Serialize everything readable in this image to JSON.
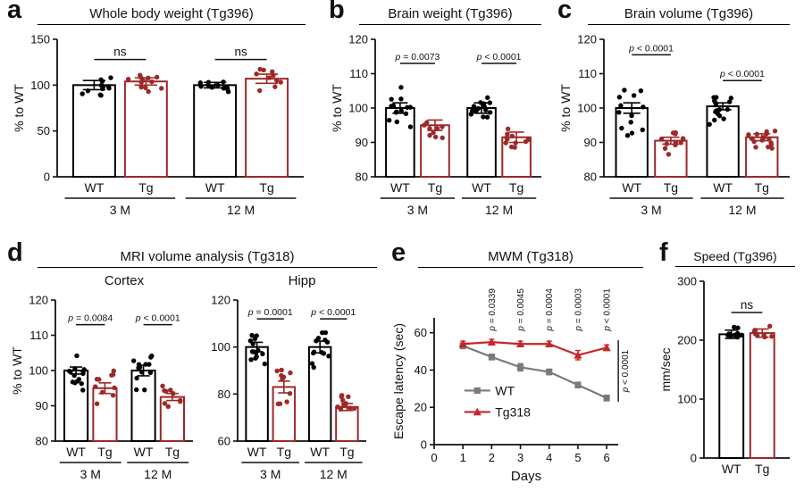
{
  "colors": {
    "wt": "#000000",
    "tg": "#9e2828",
    "axis": "#111111"
  },
  "panels": {
    "a": {
      "letter": "a",
      "title": "Whole body weight (Tg396)"
    },
    "b": {
      "letter": "b",
      "title": "Brain weight (Tg396)"
    },
    "c": {
      "letter": "c",
      "title": "Brain volume (Tg396)"
    },
    "d": {
      "letter": "d",
      "title": "MRI volume analysis (Tg318)",
      "subtitles": [
        "Cortex",
        "Hipp"
      ]
    },
    "e": {
      "letter": "e",
      "title": "MWM (Tg318)"
    },
    "f": {
      "letter": "f",
      "title": "Speed (Tg396)"
    }
  },
  "chart_data": [
    {
      "id": "a",
      "type": "bar",
      "title": "Whole body weight (Tg396)",
      "ylabel": "% to WT",
      "ylim": [
        0,
        150
      ],
      "yticks": [
        0,
        50,
        100,
        150
      ],
      "group_labels": [
        "3 M",
        "12 M"
      ],
      "bars": [
        {
          "x_label": "WT",
          "group": 0,
          "series": "WT",
          "mean": 100,
          "sem": 5,
          "n": 12,
          "spread": 26
        },
        {
          "x_label": "Tg",
          "group": 0,
          "series": "Tg",
          "mean": 104,
          "sem": 4,
          "n": 12,
          "spread": 22
        },
        {
          "x_label": "WT",
          "group": 1,
          "series": "WT",
          "mean": 100,
          "sem": 3,
          "n": 13,
          "spread": 16
        },
        {
          "x_label": "Tg",
          "group": 1,
          "series": "Tg",
          "mean": 107,
          "sem": 5,
          "n": 10,
          "spread": 24
        }
      ],
      "comparisons": [
        {
          "bars": [
            0,
            1
          ],
          "label": "ns",
          "y": 128
        },
        {
          "bars": [
            2,
            3
          ],
          "label": "ns",
          "y": 128
        }
      ]
    },
    {
      "id": "b",
      "type": "bar",
      "title": "Brain weight (Tg396)",
      "ylabel": "% to WT",
      "ylim": [
        80,
        120
      ],
      "yticks": [
        80,
        90,
        100,
        110,
        120
      ],
      "group_labels": [
        "3 M",
        "12 M"
      ],
      "bars": [
        {
          "x_label": "WT",
          "group": 0,
          "series": "WT",
          "mean": 100,
          "sem": 1.5,
          "n": 14,
          "spread": 14
        },
        {
          "x_label": "Tg",
          "group": 0,
          "series": "Tg",
          "mean": 95,
          "sem": 1.5,
          "n": 9,
          "spread": 9
        },
        {
          "x_label": "WT",
          "group": 1,
          "series": "WT",
          "mean": 100,
          "sem": 1.5,
          "n": 15,
          "spread": 13
        },
        {
          "x_label": "Tg",
          "group": 1,
          "series": "Tg",
          "mean": 91.5,
          "sem": 1.5,
          "n": 11,
          "spread": 10
        }
      ],
      "comparisons": [
        {
          "bars": [
            0,
            1
          ],
          "label": "p = 0.0073",
          "y": 113
        },
        {
          "bars": [
            2,
            3
          ],
          "label": "p < 0.0001",
          "y": 113
        }
      ]
    },
    {
      "id": "c",
      "type": "bar",
      "title": "Brain volume (Tg396)",
      "ylabel": "% to WT",
      "ylim": [
        80,
        120
      ],
      "yticks": [
        80,
        90,
        100,
        110,
        120
      ],
      "group_labels": [
        "3 M",
        "12 M"
      ],
      "bars": [
        {
          "x_label": "WT",
          "group": 0,
          "series": "WT",
          "mean": 100,
          "sem": 1.5,
          "n": 13,
          "spread": 18
        },
        {
          "x_label": "Tg",
          "group": 0,
          "series": "Tg",
          "mean": 90.5,
          "sem": 1,
          "n": 12,
          "spread": 8
        },
        {
          "x_label": "WT",
          "group": 1,
          "series": "WT",
          "mean": 100.5,
          "sem": 1,
          "n": 16,
          "spread": 11
        },
        {
          "x_label": "Tg",
          "group": 1,
          "series": "Tg",
          "mean": 91.5,
          "sem": 1,
          "n": 16,
          "spread": 8
        }
      ],
      "comparisons": [
        {
          "bars": [
            0,
            1
          ],
          "label": "p < 0.0001",
          "y": 115.5
        },
        {
          "bars": [
            2,
            3
          ],
          "label": "p < 0.0001",
          "y": 108
        }
      ]
    },
    {
      "id": "d1",
      "type": "bar",
      "subtitle": "Cortex",
      "ylabel": "% to WT",
      "ylim": [
        80,
        120
      ],
      "yticks": [
        80,
        90,
        100,
        110,
        120
      ],
      "group_labels": [
        "3 M",
        "12 M"
      ],
      "bars": [
        {
          "x_label": "WT",
          "group": 0,
          "series": "WT",
          "mean": 100,
          "sem": 1,
          "n": 14,
          "spread": 11
        },
        {
          "x_label": "Tg",
          "group": 0,
          "series": "Tg",
          "mean": 95,
          "sem": 1.5,
          "n": 10,
          "spread": 12
        },
        {
          "x_label": "WT",
          "group": 1,
          "series": "WT",
          "mean": 100,
          "sem": 1.5,
          "n": 13,
          "spread": 16
        },
        {
          "x_label": "Tg",
          "group": 1,
          "series": "Tg",
          "mean": 92.5,
          "sem": 1,
          "n": 10,
          "spread": 8
        }
      ],
      "comparisons": [
        {
          "bars": [
            0,
            1
          ],
          "label": "p = 0.0084",
          "y": 113
        },
        {
          "bars": [
            2,
            3
          ],
          "label": "p < 0.0001",
          "y": 113
        }
      ]
    },
    {
      "id": "d2",
      "type": "bar",
      "subtitle": "Hipp",
      "ylim": [
        60,
        120
      ],
      "yticks": [
        60,
        80,
        100,
        120
      ],
      "group_labels": [
        "3 M",
        "12 M"
      ],
      "bars": [
        {
          "x_label": "WT",
          "group": 0,
          "series": "WT",
          "mean": 100,
          "sem": 2,
          "n": 14,
          "spread": 22
        },
        {
          "x_label": "Tg",
          "group": 0,
          "series": "Tg",
          "mean": 83,
          "sem": 2.5,
          "n": 10,
          "spread": 20
        },
        {
          "x_label": "WT",
          "group": 1,
          "series": "WT",
          "mean": 100,
          "sem": 2.5,
          "n": 13,
          "spread": 26
        },
        {
          "x_label": "Tg",
          "group": 1,
          "series": "Tg",
          "mean": 74.5,
          "sem": 1.5,
          "n": 10,
          "spread": 12
        }
      ],
      "comparisons": [
        {
          "bars": [
            0,
            1
          ],
          "label": "p = 0.0001",
          "y": 112
        },
        {
          "bars": [
            2,
            3
          ],
          "label": "p < 0.0001",
          "y": 112
        }
      ]
    },
    {
      "id": "e",
      "type": "line",
      "title": "MWM (Tg318)",
      "xlabel": "Days",
      "ylabel": "Escape latency (sec)",
      "xlim": [
        0,
        6.4
      ],
      "xticks": [
        0,
        1,
        2,
        3,
        4,
        5,
        6
      ],
      "ylim": [
        0,
        68
      ],
      "yticks": [
        0,
        20,
        40,
        60
      ],
      "x": [
        1,
        2,
        3,
        4,
        5,
        6
      ],
      "series": [
        {
          "name": "WT",
          "marker": "square",
          "color": "#7a7a7a",
          "values": [
            53,
            47,
            41.5,
            39,
            32,
            25
          ],
          "sem": [
            1.5,
            1.5,
            2,
            1.5,
            1.5,
            1.5
          ]
        },
        {
          "name": "Tg318",
          "marker": "triangle",
          "color": "#c9252b",
          "values": [
            54,
            55,
            54,
            54,
            48,
            52
          ],
          "sem": [
            1.5,
            1.5,
            1.5,
            1.5,
            2.5,
            1.5
          ]
        }
      ],
      "point_pvalues": [
        {
          "x": 2,
          "label": "p = 0.0339"
        },
        {
          "x": 3,
          "label": "p = 0.0045"
        },
        {
          "x": 4,
          "label": "p = 0.0004"
        },
        {
          "x": 5,
          "label": "p = 0.0003"
        },
        {
          "x": 6,
          "label": "p < 0.0001"
        }
      ],
      "overall_pvalue": "p < 0.0001",
      "legend_position": "left-middle"
    },
    {
      "id": "f",
      "type": "bar",
      "title": "Speed (Tg396)",
      "ylabel": "mm/sec",
      "ylim": [
        0,
        300
      ],
      "yticks": [
        0,
        100,
        200,
        300
      ],
      "bars": [
        {
          "x_label": "WT",
          "group": 0,
          "series": "WT",
          "mean": 210,
          "sem": 7,
          "n": 9,
          "spread": 28
        },
        {
          "x_label": "Tg",
          "group": 0,
          "series": "Tg",
          "mean": 212,
          "sem": 7,
          "n": 9,
          "spread": 28
        }
      ],
      "comparisons": [
        {
          "bars": [
            0,
            1
          ],
          "label": "ns",
          "y": 247
        }
      ]
    }
  ]
}
